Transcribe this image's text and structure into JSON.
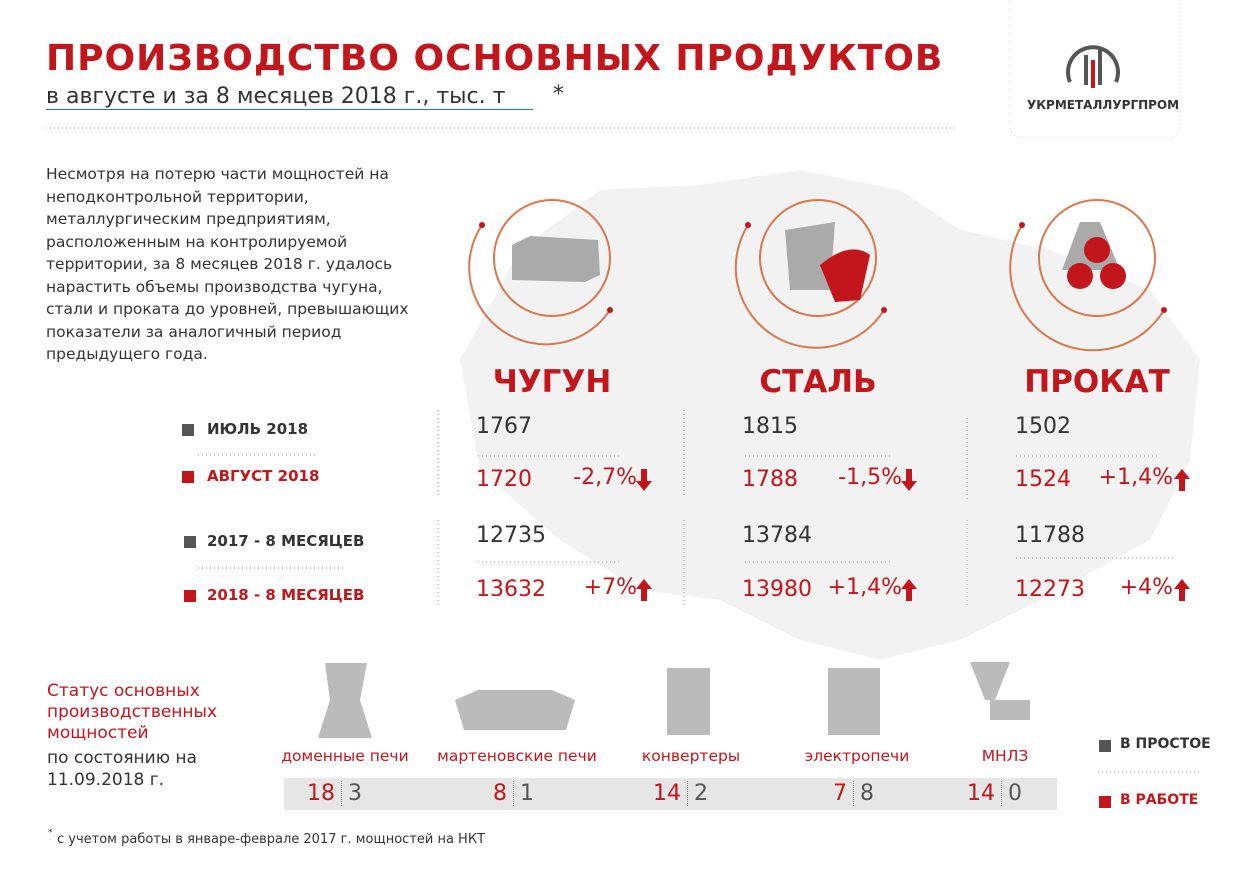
{
  "header": {
    "title": "ПРОИЗВОДСТВО ОСНОВНЫХ ПРОДУКТОВ",
    "subtitle": "в августе и за 8 месяцев 2018 г., тыс. т",
    "asterisk": "*"
  },
  "logo": {
    "text": "УКРМЕТАЛЛУРГПРОМ"
  },
  "intro": "Несмотря  на потерю части мощностей на неподконтрольной территории, металлургическим предприятиям, расположенным на контролируемой территории, за 8 месяцев 2018 г. удалось нарастить объемы производства чугуна, стали и проката до уровней, превышающих показатели за аналогичный период предыдущего года.",
  "row_labels": [
    "ИЮЛЬ 2018",
    "АВГУСТ 2018",
    "2017 - 8 МЕСЯЦЕВ",
    "2018 - 8 МЕСЯЦЕВ"
  ],
  "products": [
    {
      "name": "ЧУГУН",
      "july": 1767,
      "august": 1720,
      "month_change": "-2,7%",
      "months_2017": 12735,
      "months_2018": 13632,
      "year_change": "+7%"
    },
    {
      "name": "СТАЛЬ",
      "july": 1815,
      "august": 1788,
      "month_change": "-1,5%",
      "months_2017": 13784,
      "months_2018": 13980,
      "year_change": "+1,4%"
    },
    {
      "name": "ПРОКАТ",
      "july": 1502,
      "august": 1524,
      "month_change": "+1,4%",
      "months_2017": 11788,
      "months_2018": 12273,
      "year_change": "+4%"
    }
  ],
  "status": {
    "title": "Статус основных производственных мощностей",
    "subtitle": "по состоянию на 11.09.2018 г."
  },
  "facilities": [
    {
      "name": "доменные печи",
      "working": 18,
      "idle": 3
    },
    {
      "name": "мартеновские печи",
      "working": 8,
      "idle": 1
    },
    {
      "name": "конвертеры",
      "working": 14,
      "idle": 2
    },
    {
      "name": "электропечи",
      "working": 7,
      "idle": 8
    },
    {
      "name": "МНЛЗ",
      "working": 14,
      "idle": 0
    }
  ],
  "status_legend": {
    "idle": "В ПРОСТОЕ",
    "working": "В РАБОТЕ"
  },
  "footnote": {
    "mark": "*",
    "text": "с учетом работы в январе-феврале 2017 г. мощностей на НКТ"
  }
}
